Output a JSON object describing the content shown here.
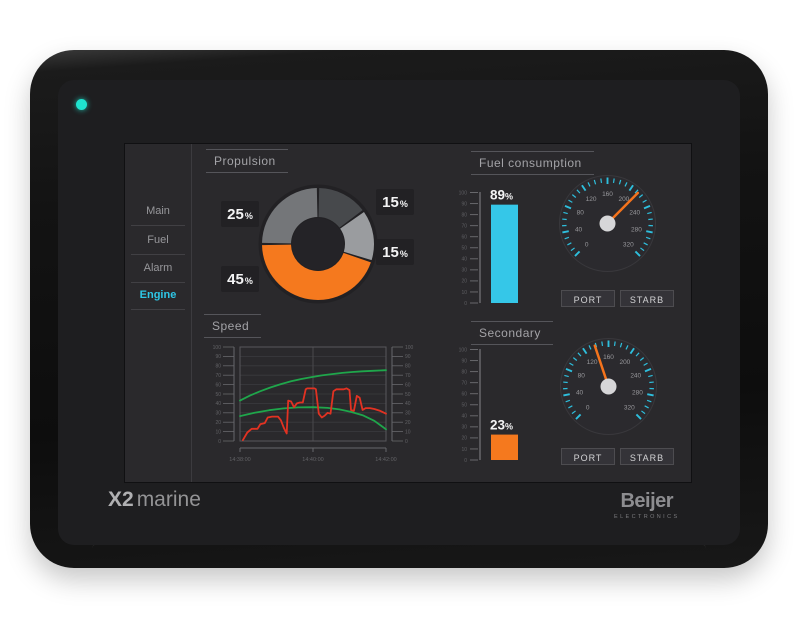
{
  "device": {
    "model_bold": "X2",
    "model_light": "marine",
    "brand": "Beijer",
    "brand_sub": "ELECTRONICS",
    "led_color": "#1fe3cf"
  },
  "sidebar": {
    "items": [
      {
        "label": "Main",
        "active": false
      },
      {
        "label": "Fuel",
        "active": false
      },
      {
        "label": "Alarm",
        "active": false
      },
      {
        "label": "Engine",
        "active": true
      }
    ],
    "active_color": "#2ec6e6"
  },
  "panels": {
    "propulsion": {
      "title": "Propulsion"
    },
    "speed": {
      "title": "Speed"
    },
    "fuel_consumption": {
      "title": "Fuel consumption"
    },
    "secondary": {
      "title": "Secondary"
    }
  },
  "buttons": {
    "port": "PORT",
    "starboard": "STARB"
  },
  "misc": {
    "percent_sign": "%"
  },
  "chart_data": [
    {
      "id": "propulsion-donut",
      "type": "pie",
      "title": "Propulsion",
      "donut": true,
      "start_angle": 0,
      "direction": "clockwise",
      "slices": [
        {
          "value": 15,
          "label": "15%",
          "color": "#47494c",
          "badge_pos": "top-right"
        },
        {
          "value": 15,
          "label": "15%",
          "color": "#9a9c9f",
          "badge_pos": "right"
        },
        {
          "value": 45,
          "label": "45%",
          "color": "#f5791e",
          "badge_pos": "bottom-left"
        },
        {
          "value": 25,
          "label": "25%",
          "color": "#747679",
          "badge_pos": "left"
        }
      ]
    },
    {
      "id": "speed-line",
      "type": "line",
      "title": "Speed",
      "x_tick_labels": [
        "14:38:00",
        "14:40:00",
        "14:42:00"
      ],
      "y_ticks": [
        0,
        10,
        20,
        30,
        40,
        50,
        60,
        70,
        80,
        90,
        100
      ],
      "y_min": 0,
      "y_max": 100,
      "dual_y_axis": true,
      "grid": true,
      "series": [
        {
          "name": "trend-upper",
          "color": "#1fa64b",
          "points": [
            [
              0,
              43
            ],
            [
              7,
              48.5
            ],
            [
              14,
              53
            ],
            [
              21,
              57
            ],
            [
              28,
              60.5
            ],
            [
              35,
              63.5
            ],
            [
              42,
              66
            ],
            [
              49,
              68
            ],
            [
              56,
              69.8
            ],
            [
              63,
              71.2
            ],
            [
              70,
              72.4
            ],
            [
              77,
              73.4
            ],
            [
              84,
              74.1
            ],
            [
              91,
              74.7
            ],
            [
              100,
              75.3
            ]
          ]
        },
        {
          "name": "trend-lower",
          "color": "#1fa64b",
          "points": [
            [
              0,
              26.5
            ],
            [
              10,
              30
            ],
            [
              20,
              32.8
            ],
            [
              30,
              34.7
            ],
            [
              40,
              35.7
            ],
            [
              50,
              36
            ],
            [
              60,
              35.2
            ],
            [
              68,
              33.6
            ],
            [
              76,
              31
            ],
            [
              84,
              27.5
            ],
            [
              92,
              21.5
            ],
            [
              100,
              12.5
            ]
          ]
        },
        {
          "name": "speed-actual",
          "color": "#e23222",
          "points": [
            [
              2,
              1
            ],
            [
              5,
              9
            ],
            [
              8,
              13
            ],
            [
              12,
              13
            ],
            [
              14,
              18
            ],
            [
              17,
              19
            ],
            [
              19,
              25
            ],
            [
              22,
              26
            ],
            [
              26,
              26
            ],
            [
              28,
              22
            ],
            [
              30,
              14
            ],
            [
              32,
              8
            ],
            [
              33,
              43
            ],
            [
              35,
              42
            ],
            [
              37,
              36
            ],
            [
              39,
              40
            ],
            [
              41,
              41
            ],
            [
              43,
              41
            ],
            [
              45,
              55
            ],
            [
              46,
              56
            ],
            [
              51,
              56
            ],
            [
              52,
              55
            ],
            [
              54,
              29
            ],
            [
              56,
              25
            ],
            [
              58,
              27
            ],
            [
              60,
              30
            ],
            [
              62,
              29
            ],
            [
              64,
              53
            ],
            [
              66,
              55
            ],
            [
              71,
              55
            ],
            [
              73,
              56
            ],
            [
              75,
              54
            ],
            [
              76,
              33
            ],
            [
              78,
              32
            ],
            [
              80,
              48
            ],
            [
              82,
              46
            ],
            [
              84,
              33
            ],
            [
              86,
              35
            ],
            [
              89,
              35
            ],
            [
              92,
              34
            ],
            [
              96,
              32
            ],
            [
              100,
              29
            ]
          ]
        }
      ]
    },
    {
      "id": "fuel-bar-gauge",
      "type": "bar",
      "value": 89,
      "label": "89%",
      "min": 0,
      "max": 100,
      "tick_step": 10,
      "scale_labels": [
        100,
        90,
        80,
        70,
        60,
        50,
        40,
        30,
        20,
        10,
        0
      ],
      "color": "#35c7e8"
    },
    {
      "id": "fuel-dial-gauge",
      "type": "gauge",
      "min": 0,
      "max": 320,
      "major_step": 40,
      "minor_step": 10,
      "tick_labels": [
        0,
        40,
        80,
        120,
        160,
        200,
        240,
        280,
        320
      ],
      "value": 213,
      "tick_color": "#2ebfdd",
      "needle_color": "#f4731c"
    },
    {
      "id": "secondary-bar-gauge",
      "type": "bar",
      "value": 23,
      "label": "23%",
      "min": 0,
      "max": 100,
      "tick_step": 10,
      "scale_labels": [
        100,
        90,
        80,
        70,
        60,
        50,
        40,
        30,
        20,
        10,
        0
      ],
      "color": "#f5791e"
    },
    {
      "id": "secondary-dial-gauge",
      "type": "gauge",
      "min": 0,
      "max": 320,
      "major_step": 40,
      "minor_step": 10,
      "tick_labels": [
        0,
        40,
        80,
        120,
        160,
        200,
        240,
        280,
        320
      ],
      "value": 138,
      "tick_color": "#2ebfdd",
      "needle_color": "#f4731c"
    }
  ]
}
